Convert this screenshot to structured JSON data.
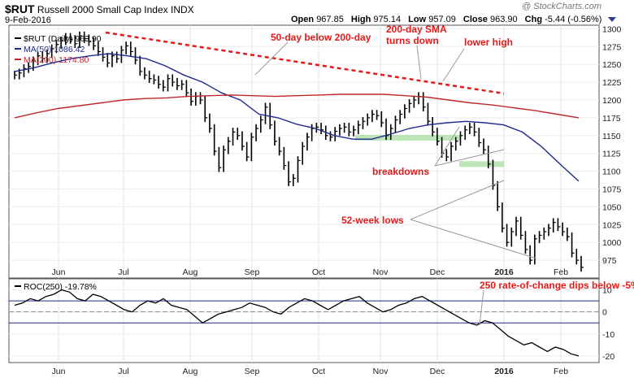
{
  "header": {
    "symbol": "$RUT",
    "name": "Russell 2000 Small Cap Index",
    "exchange": "INDX",
    "date": "9-Feb-2016",
    "open_label": "Open",
    "open": "967.85",
    "high_label": "High",
    "high": "975.14",
    "low_label": "Low",
    "low": "957.09",
    "close_label": "Close",
    "close": "963.90",
    "chg_label": "Chg",
    "chg": "-5.44 (-0.56%)",
    "watermark": "@ StockCharts.com"
  },
  "chart_data": [
    {
      "type": "line",
      "panel": "price",
      "title": "$RUT Russell 2000 Small Cap Index INDX",
      "ylim": [
        950,
        1305
      ],
      "yticks": [
        975,
        1000,
        1025,
        1050,
        1075,
        1100,
        1125,
        1150,
        1175,
        1200,
        1225,
        1250,
        1275,
        1300
      ],
      "xticks": [
        "Jun",
        "Jul",
        "Aug",
        "Sep",
        "Oct",
        "Nov",
        "Dec",
        "2016",
        "Feb"
      ],
      "legend": [
        {
          "label": "$RUT (Daily) 963.90",
          "color": "#000000"
        },
        {
          "label": "MA(50) 1086.42",
          "color": "#1f2a8c"
        },
        {
          "label": "MA(200) 1174.80",
          "color": "#c0272d"
        }
      ],
      "series": [
        {
          "name": "$RUT (Daily)",
          "color": "#000000",
          "values": [
            1235,
            1238,
            1244,
            1247,
            1255,
            1262,
            1258,
            1265,
            1272,
            1278,
            1283,
            1288,
            1285,
            1279,
            1290,
            1286,
            1282,
            1276,
            1268,
            1260,
            1252,
            1262,
            1258,
            1270,
            1276,
            1268,
            1256,
            1240,
            1235,
            1230,
            1228,
            1222,
            1218,
            1230,
            1225,
            1220,
            1222,
            1210,
            1198,
            1205,
            1200,
            1175,
            1160,
            1128,
            1105,
            1130,
            1142,
            1155,
            1150,
            1135,
            1120,
            1148,
            1160,
            1172,
            1190,
            1165,
            1142,
            1128,
            1108,
            1085,
            1090,
            1115,
            1135,
            1148,
            1160,
            1162,
            1158,
            1150,
            1148,
            1156,
            1160,
            1162,
            1155,
            1158,
            1165,
            1170,
            1175,
            1180,
            1178,
            1168,
            1150,
            1160,
            1172,
            1180,
            1188,
            1195,
            1200,
            1205,
            1190,
            1170,
            1155,
            1142,
            1125,
            1120,
            1135,
            1142,
            1150,
            1158,
            1162,
            1155,
            1140,
            1130,
            1110,
            1080,
            1050,
            1020,
            1000,
            1015,
            1030,
            1010,
            990,
            975,
            1005,
            1010,
            1015,
            1020,
            1028,
            1022,
            1015,
            1008,
            985,
            975,
            965
          ]
        },
        {
          "name": "MA(50)",
          "color": "#1f2a8c",
          "values": [
            1240,
            1245,
            1252,
            1258,
            1262,
            1265,
            1262,
            1258,
            1248,
            1235,
            1225,
            1210,
            1200,
            1180,
            1175,
            1166,
            1160,
            1150,
            1145,
            1145,
            1152,
            1160,
            1165,
            1168,
            1170,
            1168,
            1165,
            1155,
            1135,
            1110,
            1086
          ]
        },
        {
          "name": "MA(200)",
          "color": "#c0272d",
          "values": [
            1175,
            1182,
            1188,
            1192,
            1196,
            1200,
            1202,
            1203,
            1205,
            1206,
            1207,
            1206,
            1205,
            1206,
            1207,
            1208,
            1208,
            1208,
            1206,
            1204,
            1200,
            1196,
            1193,
            1189,
            1185,
            1180,
            1175
          ]
        }
      ]
    },
    {
      "type": "line",
      "panel": "indicator",
      "title": "ROC(250) -19.78%",
      "ylim": [
        -23,
        15
      ],
      "yticks": [
        10,
        0,
        -10,
        -20
      ],
      "hlines": [
        5,
        -5
      ],
      "xticks": [
        "Jun",
        "Jul",
        "Aug",
        "Sep",
        "Oct",
        "Nov",
        "Dec",
        "2016",
        "Feb"
      ],
      "series": [
        {
          "name": "ROC(250)",
          "color": "#000000",
          "values": [
            3,
            4,
            6,
            5,
            7,
            8,
            10,
            9,
            6,
            5,
            8,
            7,
            5,
            3,
            1,
            0,
            3,
            5,
            4,
            6,
            3,
            2,
            1,
            -2,
            -5,
            -3,
            -1,
            0,
            1,
            2,
            4,
            3,
            2,
            0,
            -1,
            2,
            4,
            6,
            5,
            3,
            1,
            3,
            5,
            6,
            7,
            4,
            2,
            0,
            1,
            3,
            4,
            6,
            7,
            5,
            3,
            1,
            -1,
            -3,
            -5,
            -6,
            -4,
            -5,
            -8,
            -11,
            -13,
            -15,
            -14,
            -16,
            -18,
            -16,
            -17,
            -19,
            -20
          ]
        }
      ]
    }
  ],
  "annotations": {
    "a1": "50-day below 200-day",
    "a2_line1": "200-day SMA",
    "a2_line2": "turns down",
    "a3": "lower high",
    "a4": "breakdowns",
    "a5": "52-week lows",
    "a6": "250 rate-of-change dips below -5%"
  },
  "colors": {
    "price": "#000000",
    "ma50": "#1f2a8c",
    "ma200": "#c0272d",
    "annotation": "#e41a1a",
    "support_zone": "#a8dca0"
  }
}
